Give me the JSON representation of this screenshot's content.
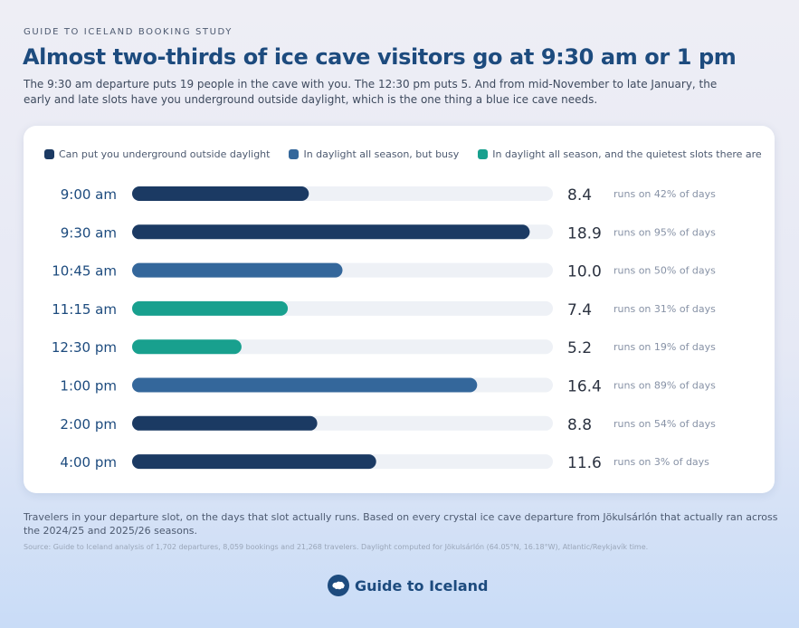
{
  "header": {
    "kicker": "GUIDE TO ICELAND BOOKING STUDY",
    "title": "Almost two-thirds of ice cave visitors go at 9:30 am or 1 pm",
    "subtitle": "The 9:30 am departure puts 19 people in the cave with you. The 12:30 pm puts 5. And from mid-November to late January, the early and late slots have you underground outside daylight, which is the one thing a blue ice cave needs."
  },
  "legend": [
    {
      "label": "Can put you underground outside daylight",
      "color": "#1b3a63"
    },
    {
      "label": "In daylight all season, but busy",
      "color": "#34679b"
    },
    {
      "label": "In daylight all season, and the quietest slots there are",
      "color": "#18a08e"
    }
  ],
  "colors": {
    "track": "#eef1f6",
    "time_label": "#1d4b7e",
    "value_label": "#2b3240",
    "runs_label": "#8792a6"
  },
  "chart_data": {
    "type": "bar",
    "orientation": "horizontal",
    "xlim": [
      0,
      20
    ],
    "categories": [
      "9:00 am",
      "9:30 am",
      "10:45 am",
      "11:15 am",
      "12:30 pm",
      "1:00 pm",
      "2:00 pm",
      "4:00 pm"
    ],
    "values": [
      8.4,
      18.9,
      10.0,
      7.4,
      5.2,
      16.4,
      8.8,
      11.6
    ],
    "value_labels": [
      "8.4",
      "18.9",
      "10.0",
      "7.4",
      "5.2",
      "16.4",
      "8.8",
      "11.6"
    ],
    "runs_labels": [
      "runs on 42% of days",
      "runs on 95% of days",
      "runs on 50% of days",
      "runs on 31% of days",
      "runs on 19% of days",
      "runs on 89% of days",
      "runs on 54% of days",
      "runs on 3% of days"
    ],
    "groups": [
      0,
      0,
      1,
      2,
      2,
      1,
      0,
      0
    ]
  },
  "footer": {
    "note": "Travelers in your departure slot, on the days that slot actually runs. Based on every crystal ice cave departure from Jökulsárlón that actually ran across the 2024/25 and 2025/26 seasons.",
    "source": "Source: Guide to Iceland analysis of 1,702 departures, 8,059 bookings and 21,268 travelers. Daylight computed for Jökulsárlón (64.05°N, 16.18°W), Atlantic/Reykjavík time."
  },
  "brand": {
    "name": "Guide to Iceland",
    "icon": "iceland-logo-icon"
  }
}
